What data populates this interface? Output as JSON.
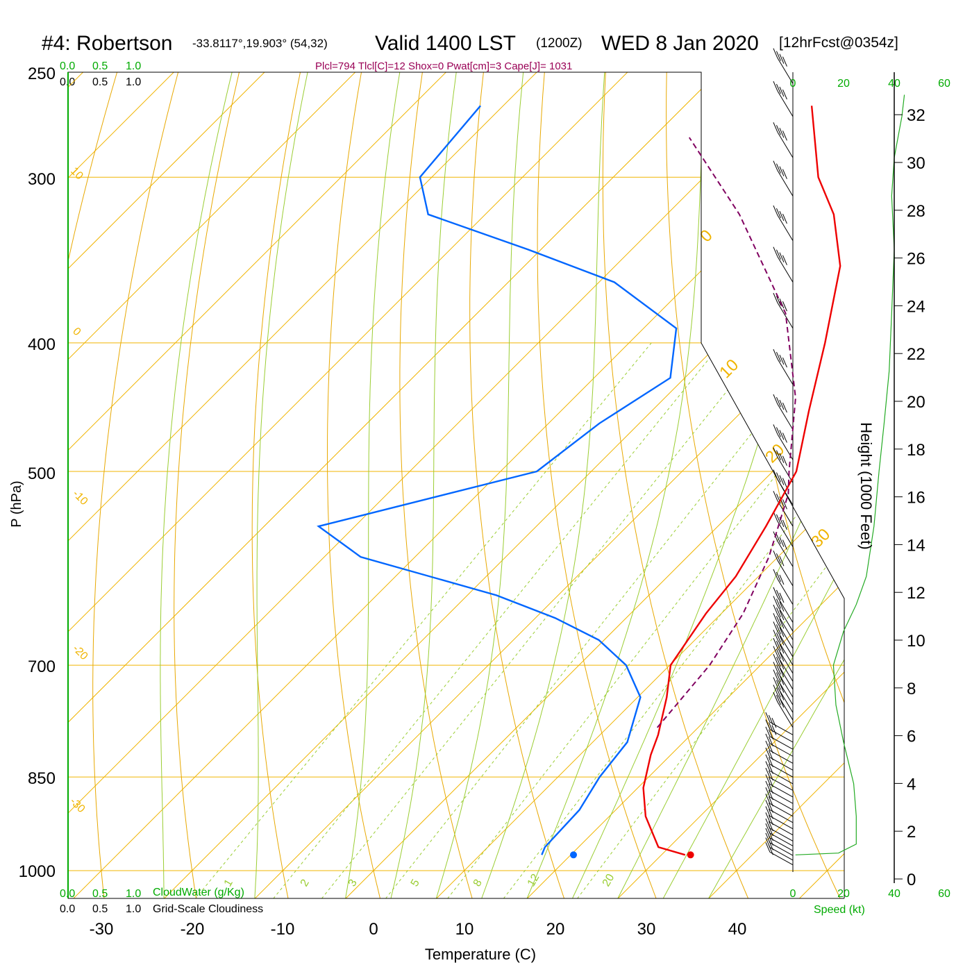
{
  "header": {
    "station": "#4: Robertson",
    "coords": "-33.8117°,19.903° (54,32)",
    "valid": "Valid 1400 LST",
    "utc": "(1200Z)",
    "date": "WED 8 Jan 2020",
    "forecast": "[12hrFcst@0354z]"
  },
  "stats": "Plcl=794 Tlcl[C]=12 Shox=0 Pwat[cm]=3 Cape[J]= 1031",
  "scales": {
    "top_green": [
      "0.0",
      "0.5",
      "1.0"
    ],
    "top_black": [
      "0.0",
      "0.5",
      "1.0"
    ],
    "bottom_green": [
      "0.0",
      "0.5",
      "1.0"
    ],
    "bottom_black": [
      "0.0",
      "0.5",
      "1.0"
    ],
    "cloudwater_label": "CloudWater (g/Kg)",
    "cloudiness_label": "Grid-Scale Cloudiness"
  },
  "wind_panel": {
    "speed_ticks": [
      "0",
      "20",
      "40",
      "60"
    ],
    "speed_label": "Speed (kt)"
  },
  "colors": {
    "isotherm": "#f0b400",
    "dry_adiabat": "#e8a800",
    "moist_adiabat": "#9acd32",
    "mixing_ratio": "#9acd32",
    "temperature": "#ee0000",
    "dewpoint": "#0066ff",
    "parcel": "#800060",
    "speed_curve": "#22aa22",
    "stats_text": "#990055",
    "green_text": "#00aa00"
  },
  "chart_data": {
    "type": "line",
    "subtype": "skew-T log-P diagram",
    "xlabel": "Temperature (C)",
    "ylabel": "P (hPa)",
    "y2label": "Height (1000 Feet)",
    "xlim": [
      -30,
      45
    ],
    "ylim_hPa": [
      1000,
      250
    ],
    "x_ticks": [
      -30,
      -20,
      -10,
      0,
      10,
      20,
      30,
      40
    ],
    "pressure_ticks": [
      250,
      300,
      400,
      500,
      700,
      850,
      1000
    ],
    "height_ticks": [
      0,
      2,
      4,
      6,
      8,
      10,
      12,
      14,
      16,
      18,
      20,
      22,
      24,
      26,
      28,
      30,
      32
    ],
    "isotherm_labels": [
      {
        "value": "10",
        "side": "left"
      },
      {
        "value": "0",
        "side": "left"
      },
      {
        "value": "-10",
        "side": "left"
      },
      {
        "value": "-20",
        "side": "left"
      },
      {
        "value": "-30",
        "side": "left"
      },
      {
        "value": "0",
        "side": "right"
      },
      {
        "value": "10",
        "side": "right"
      },
      {
        "value": "20",
        "side": "right"
      },
      {
        "value": "30",
        "side": "right"
      }
    ],
    "mixing_ratio_labels": [
      "1",
      "2",
      "3",
      "5",
      "8",
      "12",
      "20"
    ],
    "series": [
      {
        "name": "Temperature",
        "color": "#ee0000",
        "points": [
          [
            32.6,
            973
          ],
          [
            28.8,
            960
          ],
          [
            24.0,
            910
          ],
          [
            20.6,
            866
          ],
          [
            17.8,
            818
          ],
          [
            16.4,
            790
          ],
          [
            13.2,
            740
          ],
          [
            10.1,
            700
          ],
          [
            8.3,
            640
          ],
          [
            7.5,
            600
          ],
          [
            5.3,
            550
          ],
          [
            2.6,
            500
          ],
          [
            -2.7,
            450
          ],
          [
            -8.4,
            400
          ],
          [
            -15.2,
            350
          ],
          [
            -21.6,
            320
          ],
          [
            -27.4,
            300
          ],
          [
            -36.0,
            265
          ]
        ],
        "surface_marker": {
          "t": 33.2,
          "p": 973
        }
      },
      {
        "name": "Dewpoint",
        "color": "#0066ff",
        "points": [
          [
            16.8,
            973
          ],
          [
            16.3,
            960
          ],
          [
            16.0,
            900
          ],
          [
            14.6,
            850
          ],
          [
            13.8,
            800
          ],
          [
            10.3,
            740
          ],
          [
            5.2,
            700
          ],
          [
            -0.6,
            670
          ],
          [
            -7.8,
            645
          ],
          [
            -16.8,
            620
          ],
          [
            -36.0,
            580
          ],
          [
            -44.0,
            550
          ],
          [
            -26.0,
            500
          ],
          [
            -24.4,
            460
          ],
          [
            -21.6,
            425
          ],
          [
            -26.4,
            390
          ],
          [
            -38.3,
            360
          ],
          [
            -51.5,
            340
          ],
          [
            -66.3,
            320
          ],
          [
            -71.3,
            300
          ],
          [
            -72.5,
            265
          ]
        ],
        "surface_marker": {
          "t": 20.3,
          "p": 973
        }
      },
      {
        "name": "Parcel",
        "color": "#800060",
        "dashed": true,
        "points": [
          [
            15.5,
            780
          ],
          [
            14.4,
            700
          ],
          [
            12.4,
            640
          ],
          [
            9.0,
            580
          ],
          [
            4.2,
            520
          ],
          [
            1.8,
            500
          ],
          [
            -5.6,
            440
          ],
          [
            -16.0,
            380
          ],
          [
            -32.0,
            320
          ],
          [
            -46.0,
            280
          ]
        ]
      }
    ],
    "wind_levels_hPa": [
      990,
      982,
      974,
      966,
      958,
      950,
      940,
      930,
      920,
      910,
      900,
      890,
      880,
      870,
      860,
      850,
      840,
      830,
      820,
      810,
      800,
      790,
      780,
      770,
      760,
      750,
      740,
      730,
      720,
      710,
      700,
      690,
      680,
      670,
      660,
      650,
      630,
      610,
      590,
      570,
      550,
      530,
      510,
      490,
      465,
      430,
      390,
      360,
      335,
      310,
      290,
      270,
      255
    ],
    "wind_speed_profile": [
      [
        1,
        973
      ],
      [
        18,
        970
      ],
      [
        25,
        955
      ],
      [
        25,
        910
      ],
      [
        24,
        860
      ],
      [
        20,
        800
      ],
      [
        17,
        750
      ],
      [
        16,
        700
      ],
      [
        20,
        660
      ],
      [
        25,
        630
      ],
      [
        29,
        600
      ],
      [
        32,
        550
      ],
      [
        34,
        500
      ],
      [
        36,
        460
      ],
      [
        38,
        420
      ],
      [
        39,
        380
      ],
      [
        40,
        340
      ],
      [
        39,
        310
      ],
      [
        40,
        290
      ],
      [
        43,
        270
      ],
      [
        44,
        260
      ]
    ]
  }
}
